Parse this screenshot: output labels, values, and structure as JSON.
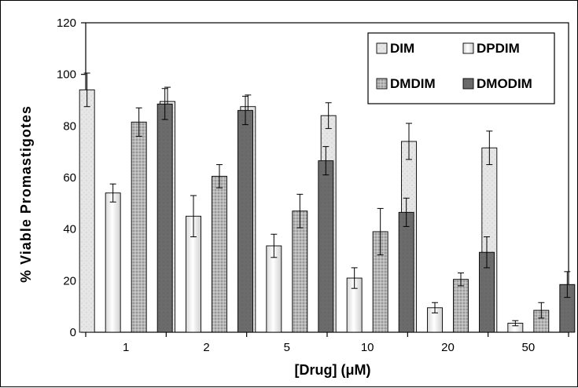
{
  "chart_data": {
    "type": "bar",
    "xlabel": "[Drug] (μM)",
    "ylabel": "% Viable Promastigotes",
    "ylim": [
      0,
      120
    ],
    "yticks": [
      0,
      20,
      40,
      60,
      80,
      100,
      120
    ],
    "categories": [
      "1",
      "2",
      "5",
      "10",
      "20",
      "50"
    ],
    "legend_position": "top-right",
    "grid": false,
    "series": [
      {
        "name": "DIM",
        "values": [
          94,
          89.5,
          87.5,
          84,
          74,
          71.5
        ],
        "errors": [
          6.5,
          5.5,
          4.5,
          5,
          7,
          6.5
        ],
        "color": "#e4e4e4",
        "pattern": "light-speckle"
      },
      {
        "name": "DPDIM",
        "values": [
          54,
          45,
          33.5,
          21,
          9.5,
          3.5
        ],
        "errors": [
          3.5,
          8,
          4.5,
          4,
          2,
          1
        ],
        "color": "#f4f4f4",
        "pattern": "gradient"
      },
      {
        "name": "DMDIM",
        "values": [
          81.5,
          60.5,
          47,
          39,
          20.5,
          8.5
        ],
        "errors": [
          5.5,
          4.5,
          6.5,
          9,
          2.5,
          3
        ],
        "color": "#a8a8a8",
        "pattern": "dense-speckle"
      },
      {
        "name": "DMODIM",
        "values": [
          88.5,
          86,
          66.5,
          46.5,
          31,
          18.5
        ],
        "errors": [
          6,
          5.5,
          5.5,
          5.5,
          6,
          5
        ],
        "color": "#6e6e6e",
        "pattern": "solid-dark"
      }
    ]
  }
}
